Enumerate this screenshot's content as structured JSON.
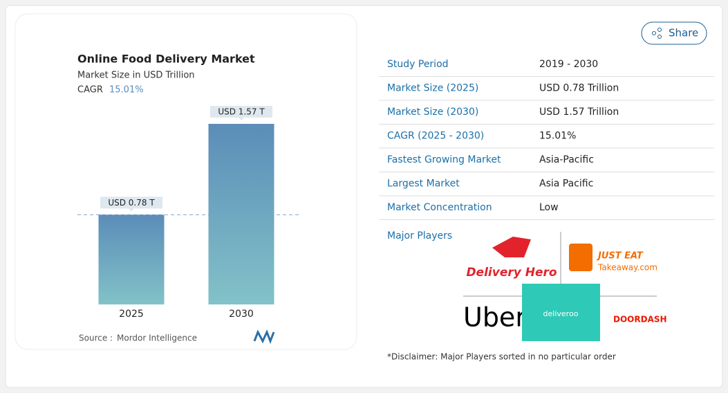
{
  "chart_data": {
    "type": "bar",
    "title": "Online Food Delivery Market",
    "subtitle": "Market Size in USD Trillion",
    "cagr_label": "CAGR",
    "cagr": "15.01%",
    "categories": [
      "2025",
      "2030"
    ],
    "values": [
      0.78,
      1.57
    ],
    "value_labels": [
      "USD 0.78 T",
      "USD 1.57 T"
    ],
    "color": "#5f93bb",
    "source_label": "Source :",
    "source": "Mordor Intelligence"
  },
  "share": "Share",
  "table": {
    "rows": [
      [
        "Study Period",
        "2019 - 2030"
      ],
      [
        "Market Size (2025)",
        "USD 0.78 Trillion"
      ],
      [
        "Market Size (2030)",
        "USD 1.57 Trillion"
      ],
      [
        "CAGR (2025 - 2030)",
        "15.01%"
      ],
      [
        "Fastest Growing Market",
        "Asia-Pacific"
      ],
      [
        "Largest Market",
        "Asia Pacific"
      ],
      [
        "Market Concentration",
        "Low"
      ]
    ]
  },
  "major_players": {
    "title": "Major Players",
    "logos": [
      "Delivery Hero",
      "JUST EAT",
      "Takeaway.com",
      "Uber",
      "deliveroo",
      "DOORDASH"
    ]
  },
  "disclaimer": "*Disclaimer: Major Players sorted in no particular order"
}
